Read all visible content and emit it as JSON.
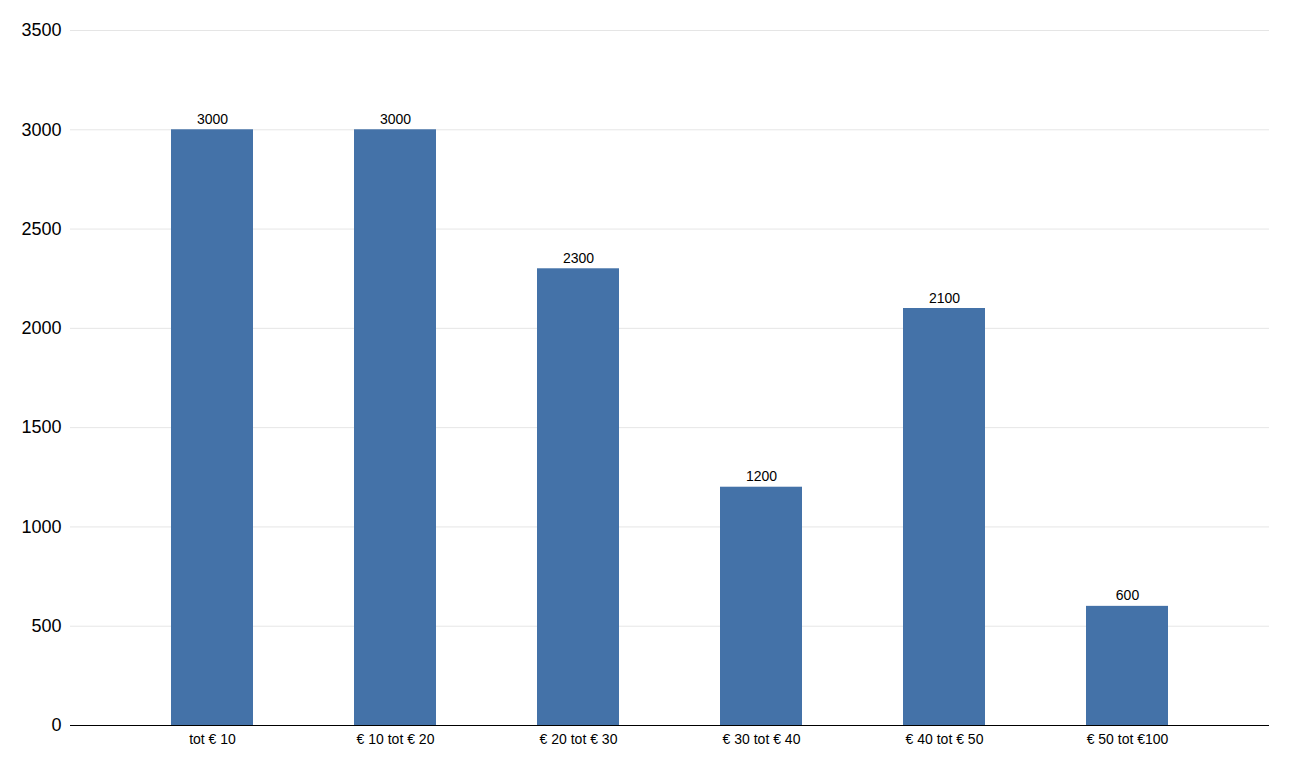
{
  "chart_data": {
    "type": "bar",
    "categories": [
      "tot € 10",
      "€ 10 tot € 20",
      "€ 20 tot € 30",
      "€ 30 tot € 40",
      "€ 40 tot € 50",
      "€ 50 tot €100"
    ],
    "values": [
      3000,
      3000,
      2300,
      1200,
      2100,
      600
    ],
    "color": "#4472a8",
    "ylim": [
      0,
      3500
    ],
    "yticks": [
      0,
      500,
      1000,
      1500,
      2000,
      2500,
      3000,
      3500
    ],
    "grid": true,
    "data_labels": true
  }
}
